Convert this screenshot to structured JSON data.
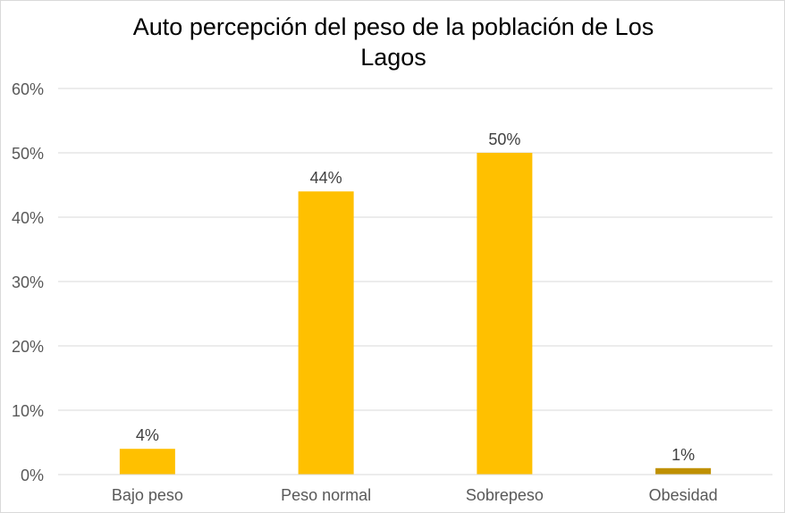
{
  "chart_data": {
    "type": "bar",
    "title": "Auto percepción del peso de la población de Los Lagos",
    "categories": [
      "Bajo peso",
      "Peso normal",
      "Sobrepeso",
      "Obesidad"
    ],
    "values": [
      4,
      44,
      50,
      1
    ],
    "value_labels": [
      "4%",
      "44%",
      "50%",
      "1%"
    ],
    "bar_colors": [
      "#ffc000",
      "#ffc000",
      "#ffc000",
      "#bf9000"
    ],
    "ylim": [
      0,
      60
    ],
    "yticks": [
      0,
      10,
      20,
      30,
      40,
      50,
      60
    ],
    "ytick_labels": [
      "0%",
      "10%",
      "20%",
      "30%",
      "40%",
      "50%",
      "60%"
    ],
    "xlabel": "",
    "ylabel": "",
    "grid": true,
    "legend": "none"
  }
}
